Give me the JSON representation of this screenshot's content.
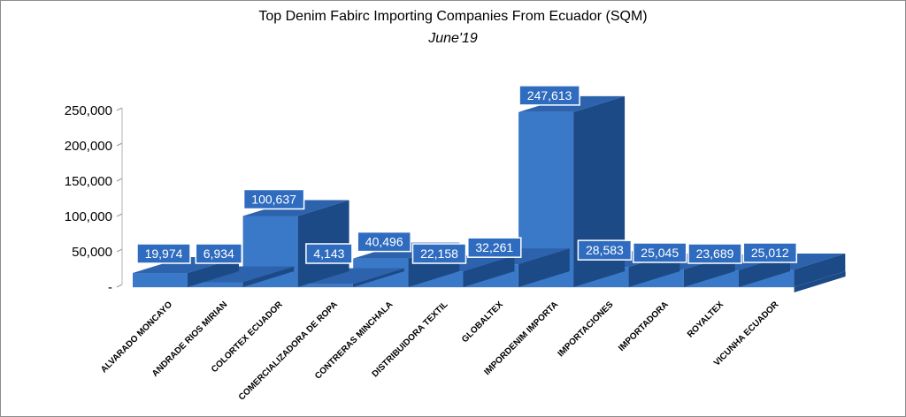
{
  "chart_data": {
    "type": "bar",
    "title": "Top Denim Fabirc Importing Companies From Ecuador (SQM)",
    "subtitle": "June'19",
    "xlabel": "",
    "ylabel": "",
    "ylim": [
      0,
      250000
    ],
    "yticks": [
      "-",
      "50,000",
      "100,000",
      "150,000",
      "200,000",
      "250,000"
    ],
    "grid": false,
    "legend": "none",
    "categories": [
      "ALVARADO MONCAYO",
      "ANDRADE RIOS MIRIAN",
      "COLORTEX ECUADOR",
      "COMERCIALIZADORA DE ROPA",
      "CONTRERAS MINCHALA",
      "DISTRIBUIDORA TEXTIL",
      "GLOBALTEX",
      "IMPORDENIM IMPORTA",
      "IMPORTACIONES",
      "IMPORTADORA",
      "ROYALTEX",
      "VICUNHA ECUADOR"
    ],
    "values": [
      19974,
      6934,
      100637,
      4143,
      40496,
      22158,
      32261,
      247613,
      28583,
      25045,
      23689,
      25012
    ],
    "value_labels": [
      "19,974",
      "6,934",
      "100,637",
      "4,143",
      "40,496",
      "22,158",
      "32,261",
      "247,613",
      "28,583",
      "25,045",
      "23,689",
      "25,012"
    ],
    "colors": {
      "front": "#3a78c8",
      "side": "#1c4a86",
      "top": "#2d62ad",
      "label_bg": "#2f6cbf",
      "label_border": "#ffffff"
    }
  }
}
